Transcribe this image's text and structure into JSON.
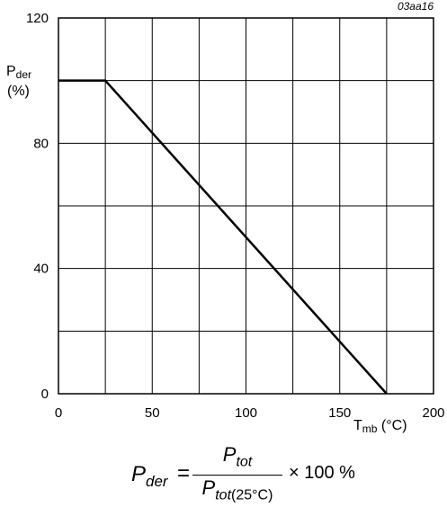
{
  "figure_code": "03aa16",
  "formula": {
    "lhs_symbol": "P",
    "lhs_sub": "der",
    "equals": "=",
    "num_symbol": "P",
    "num_sub": "tot",
    "den_symbol": "P",
    "den_sub": "tot",
    "den_cond": "(25°C)",
    "multiplier": "× 100 %"
  },
  "chart_data": {
    "type": "line",
    "title": "",
    "ylabel": {
      "symbol": "P",
      "sub": "der",
      "unit": "(%)"
    },
    "xlabel": {
      "symbol": "T",
      "sub": "mb",
      "unit": "(°C)"
    },
    "xlim": [
      0,
      200
    ],
    "ylim": [
      0,
      120
    ],
    "x_ticks": [
      0,
      50,
      100,
      150,
      200
    ],
    "y_ticks": [
      0,
      40,
      80,
      120
    ],
    "x_grid": [
      0,
      25,
      50,
      75,
      100,
      125,
      150,
      175,
      200
    ],
    "y_grid": [
      0,
      20,
      40,
      60,
      80,
      100,
      120
    ],
    "grid": true,
    "series": [
      {
        "x": [
          0,
          25,
          175
        ],
        "y": [
          100,
          100,
          0
        ]
      }
    ]
  }
}
